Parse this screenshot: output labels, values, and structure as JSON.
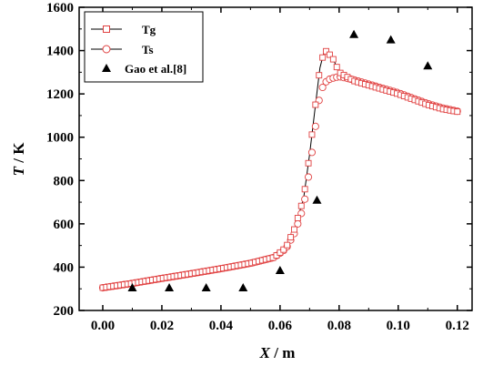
{
  "chart_data": {
    "type": "line",
    "xlabel_var": "X",
    "xlabel_unit": " / m",
    "ylabel_var": "T",
    "ylabel_unit": " / K",
    "xlim": [
      -0.008,
      0.125
    ],
    "ylim": [
      200,
      1600
    ],
    "xticks": [
      "0.00",
      "0.02",
      "0.04",
      "0.06",
      "0.08",
      "0.10",
      "0.12"
    ],
    "yticks": [
      "200",
      "400",
      "600",
      "800",
      "1000",
      "1200",
      "1400",
      "1600"
    ],
    "legend_position": "top-left",
    "colors": {
      "line": "#000000",
      "marker": "#e04040",
      "triangle": "#000000"
    },
    "series": [
      {
        "name": "Tg",
        "marker": "square",
        "x": [
          0.0,
          0.01,
          0.02,
          0.03,
          0.04,
          0.05,
          0.058,
          0.062,
          0.065,
          0.068,
          0.07,
          0.072,
          0.0735,
          0.075,
          0.076,
          0.078,
          0.08,
          0.085,
          0.09,
          0.095,
          0.1,
          0.105,
          0.11,
          0.115,
          0.12
        ],
        "y": [
          305,
          325,
          348,
          370,
          393,
          418,
          445,
          490,
          580,
          720,
          920,
          1150,
          1320,
          1400,
          1395,
          1360,
          1300,
          1260,
          1240,
          1220,
          1200,
          1175,
          1150,
          1130,
          1118
        ]
      },
      {
        "name": "Ts",
        "marker": "circle",
        "x": [
          0.0,
          0.01,
          0.02,
          0.03,
          0.04,
          0.05,
          0.058,
          0.062,
          0.065,
          0.068,
          0.07,
          0.072,
          0.0735,
          0.075,
          0.077,
          0.08,
          0.085,
          0.09,
          0.095,
          0.1,
          0.105,
          0.11,
          0.115,
          0.12
        ],
        "y": [
          305,
          325,
          348,
          370,
          393,
          418,
          445,
          485,
          560,
          680,
          850,
          1050,
          1200,
          1250,
          1270,
          1280,
          1265,
          1245,
          1225,
          1205,
          1180,
          1155,
          1135,
          1120
        ]
      },
      {
        "name": "Gao et al.[8]",
        "marker": "triangle",
        "x": [
          0.01,
          0.0225,
          0.035,
          0.0475,
          0.06,
          0.0725,
          0.085,
          0.0975,
          0.11
        ],
        "y": [
          305,
          305,
          305,
          305,
          385,
          710,
          1475,
          1450,
          1330
        ]
      }
    ]
  }
}
